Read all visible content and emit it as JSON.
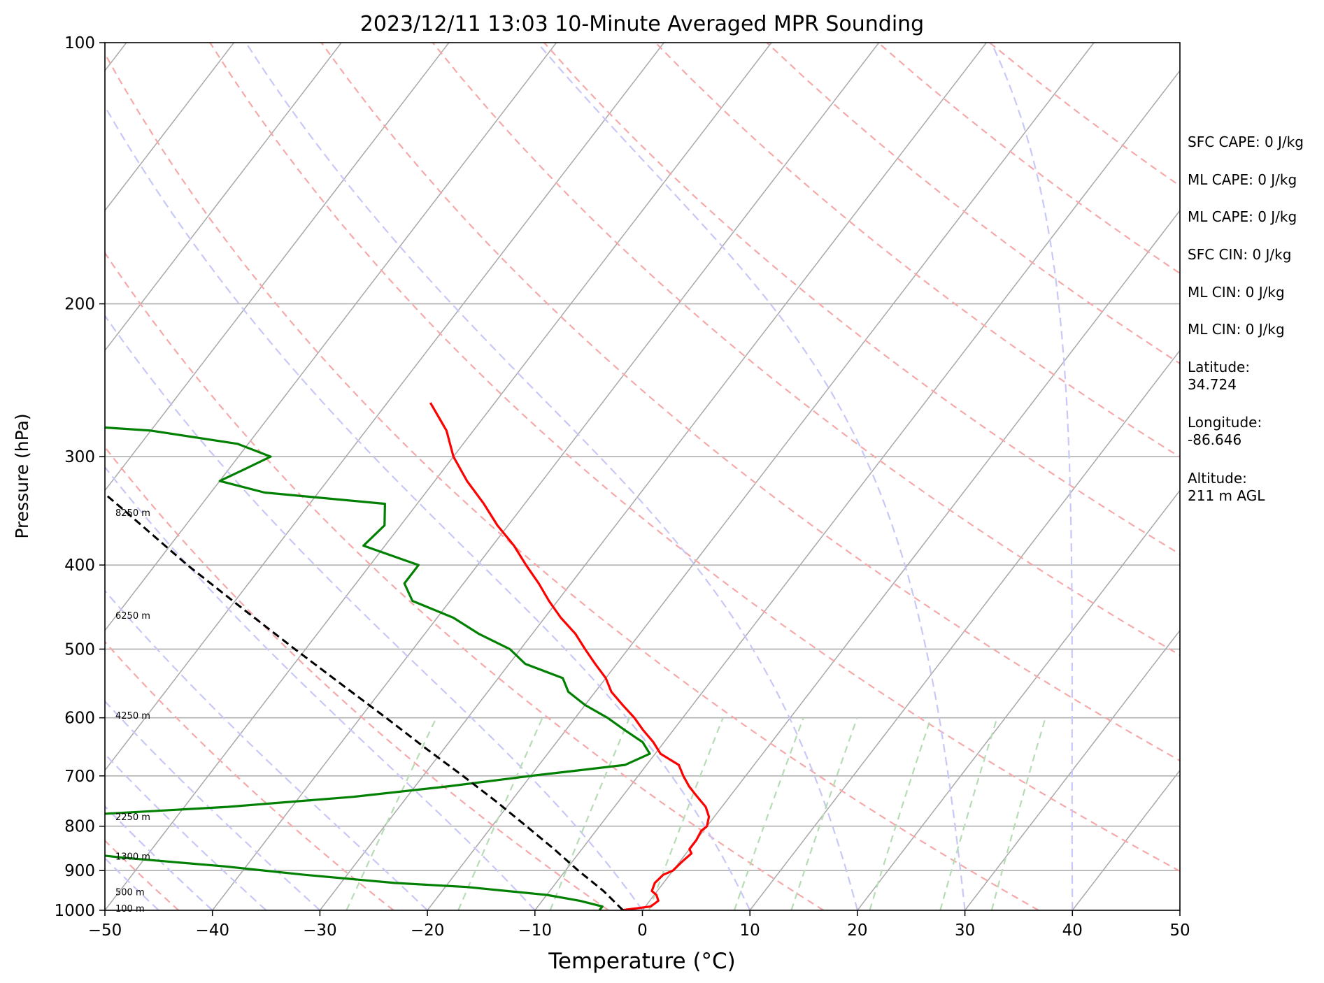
{
  "chart_data": {
    "type": "line",
    "title": "2023/12/11 13:03 10-Minute Averaged MPR Sounding",
    "xlabel": "Temperature (°C)",
    "ylabel": "Pressure (hPa)",
    "xlim": [
      -50,
      50
    ],
    "ylim": [
      1000,
      100
    ],
    "y_scale": "log",
    "skew": true,
    "grid": true,
    "x_ticks": [
      "−50",
      "−40",
      "−30",
      "−20",
      "−10",
      "0",
      "10",
      "20",
      "30",
      "40",
      "50"
    ],
    "y_ticks": [
      "100",
      "200",
      "300",
      "400",
      "500",
      "600",
      "700",
      "800",
      "900",
      "1000"
    ],
    "series": [
      {
        "role": "temperature",
        "color": "#ff0000",
        "pressure": [
          1000,
          990,
          975,
          960,
          950,
          930,
          910,
          900,
          880,
          860,
          850,
          830,
          810,
          800,
          780,
          760,
          740,
          720,
          700,
          680,
          660,
          640,
          620,
          600,
          580,
          560,
          540,
          520,
          500,
          480,
          460,
          440,
          420,
          400,
          380,
          360,
          340,
          320,
          300,
          280,
          260
        ],
        "temp": [
          -2.0,
          0.5,
          0.8,
          0.2,
          -0.5,
          -0.8,
          -0.6,
          0.0,
          0.2,
          0.5,
          0.0,
          0.0,
          -0.2,
          0.0,
          -0.5,
          -1.5,
          -3.0,
          -4.5,
          -5.8,
          -7.0,
          -9.5,
          -11.0,
          -12.8,
          -14.5,
          -16.5,
          -18.5,
          -20.0,
          -22.0,
          -24.0,
          -26.0,
          -28.5,
          -30.8,
          -33.0,
          -35.5,
          -38.0,
          -41.0,
          -43.8,
          -47.0,
          -50.0,
          -52.5,
          -56.0
        ]
      },
      {
        "role": "dewpoint",
        "color": "#008000",
        "pressure": [
          1000,
          990,
          975,
          960,
          950,
          940,
          930,
          910,
          890,
          870,
          850,
          840,
          830,
          810,
          800,
          790,
          780,
          760,
          740,
          720,
          700,
          690,
          680,
          660,
          640,
          620,
          600,
          580,
          560,
          540,
          520,
          500,
          480,
          460,
          440,
          420,
          400,
          380,
          360,
          340,
          330,
          320,
          310,
          300,
          290,
          280,
          270
        ],
        "temp": [
          -4.0,
          -4.0,
          -6.5,
          -10.0,
          -14.0,
          -18.0,
          -25.0,
          -34.0,
          -42.0,
          -52.0,
          -60.0,
          -61.0,
          -60.5,
          -58.0,
          -60.0,
          -61.0,
          -61.5,
          -46.0,
          -35.0,
          -27.0,
          -20.0,
          -16.0,
          -12.0,
          -10.5,
          -12.0,
          -14.5,
          -17.0,
          -20.0,
          -22.5,
          -24.0,
          -28.5,
          -31.0,
          -35.0,
          -38.5,
          -43.5,
          -45.5,
          -45.5,
          -52.0,
          -51.5,
          -53.0,
          -65.0,
          -70.0,
          -68.5,
          -67.0,
          -71.0,
          -80.0,
          -100.0
        ]
      },
      {
        "role": "parcel",
        "color": "#000000",
        "pressure": [
          1000,
          950,
          900,
          850,
          800,
          750,
          700,
          650,
          600,
          550,
          500,
          450,
          400,
          350,
          300
        ],
        "temp": [
          -1.8,
          -5.0,
          -8.8,
          -12.6,
          -16.8,
          -21.3,
          -26.3,
          -31.8,
          -37.6,
          -44.0,
          -51.0,
          -58.6,
          -67.0,
          -76.0,
          -86.5
        ]
      }
    ],
    "dry_adiabats_theta_K": [
      210,
      230,
      250,
      270,
      290,
      310,
      330,
      350,
      370,
      390,
      410,
      430,
      450,
      470
    ],
    "moist_adiabats_start_C": [
      -40,
      -30,
      -20,
      -10,
      0,
      10,
      20,
      30,
      40,
      50
    ],
    "mixing_ratio_lines_g_kg": [
      0.4,
      1,
      2,
      4,
      7,
      10,
      16,
      24,
      32
    ],
    "isotherm_step_C": 10,
    "height_labels": [
      {
        "text": "8250 m",
        "pressure": 348
      },
      {
        "text": "6250 m",
        "pressure": 457
      },
      {
        "text": "4250 m",
        "pressure": 596
      },
      {
        "text": "2250 m",
        "pressure": 780
      },
      {
        "text": "1300 m",
        "pressure": 866
      },
      {
        "text": "500 m",
        "pressure": 952
      },
      {
        "text": "100 m",
        "pressure": 994
      }
    ]
  },
  "info": {
    "sfc_cape": "SFC CAPE: 0 J/kg",
    "ml_cape_1": "ML CAPE: 0 J/kg",
    "ml_cape_2": "ML CAPE: 0 J/kg",
    "sfc_cin": "SFC CIN: 0 J/kg",
    "ml_cin_1": "ML CIN: 0 J/kg",
    "ml_cin_2": "ML CIN: 0 J/kg",
    "latitude": "Latitude:\n34.724",
    "longitude": "Longitude:\n-86.646",
    "altitude": "Altitude:\n211 m AGL"
  }
}
